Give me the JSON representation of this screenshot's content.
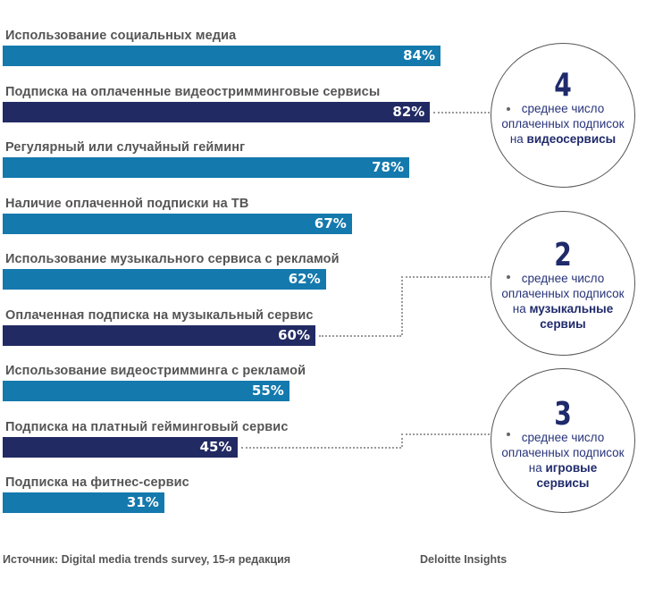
{
  "chart_data": {
    "type": "bar",
    "orientation": "horizontal",
    "title": "",
    "xlabel": "",
    "ylabel": "",
    "xlim": [
      0,
      100
    ],
    "value_suffix": "%",
    "grid": false,
    "categories": [
      "Использование социальных медиа",
      "Подписка на оплаченные видеостримминговые сервисы",
      "Регулярный или случайный гейминг",
      "Наличие оплаченной подписки на ТВ",
      "Использование музыкального сервиса с рекламой",
      "Оплаченная подписка на музыкальный сервис",
      "Использование видеостримминга с рекламой",
      "Подписка на платный гейминговый сервис",
      "Подписка на фитнес-сервис"
    ],
    "values": [
      84,
      82,
      78,
      67,
      62,
      60,
      55,
      45,
      31
    ],
    "value_labels": [
      "84%",
      "82%",
      "78%",
      "67%",
      "62%",
      "60%",
      "55%",
      "45%",
      "31%"
    ],
    "highlight": [
      false,
      true,
      false,
      false,
      false,
      true,
      false,
      true,
      false
    ],
    "colors": {
      "default": "#1479ad",
      "highlight": "#222a63"
    },
    "annotations": [
      {
        "linked_bar": 1,
        "number": "4",
        "line1": "среднее число",
        "line2": "оплаченных подписок",
        "prefix": "на",
        "bold": "видеосервисы",
        "bold2": ""
      },
      {
        "linked_bar": 5,
        "number": "2",
        "line1": "среднее число",
        "line2": "оплаченных подписок",
        "prefix": "на",
        "bold": "музыкальные",
        "bold2": "сервиы"
      },
      {
        "linked_bar": 7,
        "number": "3",
        "line1": "среднее число",
        "line2": "оплаченных подписок",
        "prefix": "на",
        "bold": "игровые",
        "bold2": "сервисы"
      }
    ]
  },
  "footer": {
    "source": "Источник: Digital media trends survey, 15-я редакция",
    "brand": "Deloitte Insights"
  }
}
